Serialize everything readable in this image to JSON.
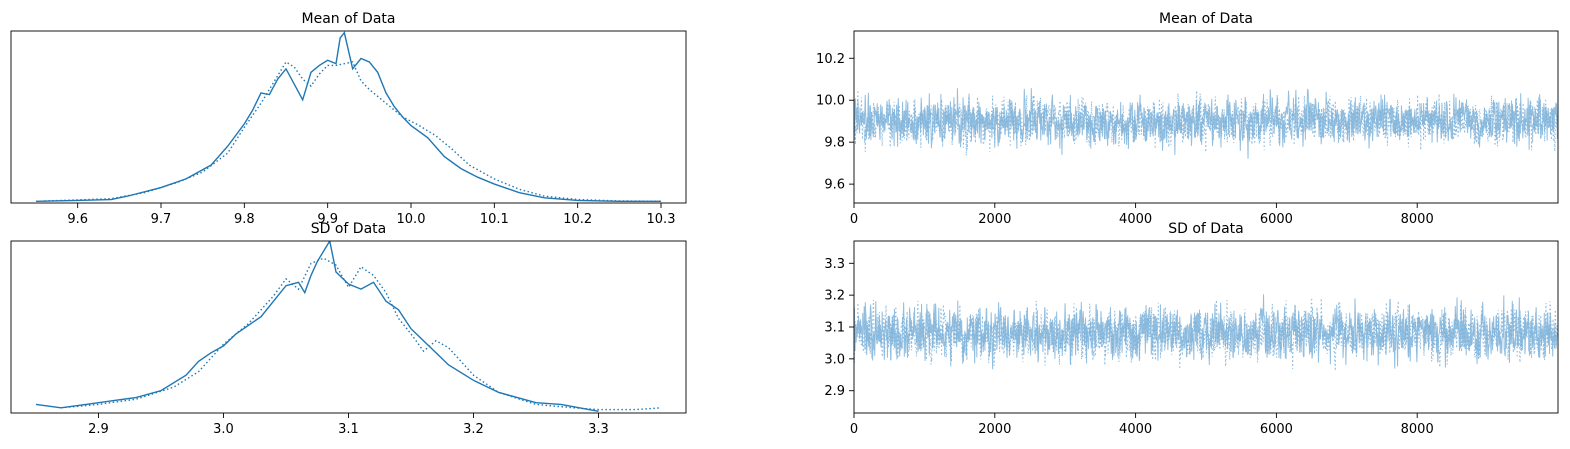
{
  "figure": {
    "colors": {
      "line": "#1f77b4",
      "trace": "#7fb3d9",
      "frame": "#000000"
    }
  },
  "chart_data": [
    {
      "type": "line",
      "subtype": "density",
      "title": "Mean of Data",
      "xlabel": "",
      "ylabel": "",
      "xlim": [
        9.52,
        10.33
      ],
      "ylim": [
        0,
        1
      ],
      "y_ticks_visible": false,
      "grid": false,
      "x_ticks": [
        "9.6",
        "9.7",
        "9.8",
        "9.9",
        "10.0",
        "10.1",
        "10.2",
        "10.3"
      ],
      "series": [
        {
          "style": "solid",
          "x": [
            9.55,
            9.6,
            9.64,
            9.66,
            9.7,
            9.73,
            9.76,
            9.78,
            9.8,
            9.81,
            9.82,
            9.83,
            9.84,
            9.85,
            9.86,
            9.87,
            9.88,
            9.89,
            9.9,
            9.91,
            9.915,
            9.92,
            9.93,
            9.94,
            9.95,
            9.96,
            9.97,
            9.98,
            9.99,
            10.0,
            10.02,
            10.04,
            10.06,
            10.08,
            10.1,
            10.13,
            10.16,
            10.2,
            10.25,
            10.3
          ],
          "y": [
            0.01,
            0.015,
            0.02,
            0.04,
            0.09,
            0.14,
            0.22,
            0.33,
            0.46,
            0.54,
            0.64,
            0.63,
            0.72,
            0.78,
            0.69,
            0.6,
            0.76,
            0.8,
            0.83,
            0.81,
            0.96,
            0.99,
            0.78,
            0.84,
            0.82,
            0.76,
            0.64,
            0.56,
            0.5,
            0.45,
            0.38,
            0.27,
            0.2,
            0.15,
            0.11,
            0.06,
            0.03,
            0.015,
            0.01,
            0.01
          ]
        },
        {
          "style": "dotted",
          "x": [
            9.56,
            9.6,
            9.64,
            9.68,
            9.72,
            9.75,
            9.78,
            9.8,
            9.82,
            9.84,
            9.85,
            9.86,
            9.87,
            9.88,
            9.89,
            9.9,
            9.91,
            9.93,
            9.94,
            9.95,
            9.97,
            9.99,
            10.01,
            10.03,
            10.05,
            10.07,
            10.1,
            10.13,
            10.16,
            10.2,
            10.25,
            10.3
          ],
          "y": [
            0.012,
            0.018,
            0.025,
            0.06,
            0.12,
            0.18,
            0.29,
            0.44,
            0.58,
            0.74,
            0.82,
            0.79,
            0.72,
            0.68,
            0.75,
            0.8,
            0.8,
            0.82,
            0.71,
            0.66,
            0.58,
            0.5,
            0.45,
            0.39,
            0.31,
            0.22,
            0.14,
            0.08,
            0.04,
            0.02,
            0.012,
            0.01
          ]
        }
      ]
    },
    {
      "type": "line",
      "subtype": "trace",
      "title": "Mean of Data",
      "xlabel": "",
      "ylabel": "",
      "xlim": [
        0,
        10000
      ],
      "ylim": [
        9.51,
        10.33
      ],
      "x_ticks": [
        "0",
        "2000",
        "4000",
        "6000",
        "8000"
      ],
      "y_ticks": [
        "9.6",
        "9.8",
        "10.0",
        "10.2"
      ],
      "grid": false,
      "series": [
        {
          "style": "solid",
          "samples": 10000,
          "center": 9.9,
          "spread": 0.1
        },
        {
          "style": "dotted",
          "samples": 10000,
          "center": 9.9,
          "spread": 0.1
        }
      ]
    },
    {
      "type": "line",
      "subtype": "density",
      "title": "SD of Data",
      "xlabel": "",
      "ylabel": "",
      "xlim": [
        2.83,
        3.37
      ],
      "ylim": [
        0,
        1
      ],
      "y_ticks_visible": false,
      "grid": false,
      "x_ticks": [
        "2.9",
        "3.0",
        "3.1",
        "3.2",
        "3.3"
      ],
      "series": [
        {
          "style": "solid",
          "x": [
            2.85,
            2.87,
            2.89,
            2.91,
            2.93,
            2.95,
            2.97,
            2.98,
            2.99,
            3.0,
            3.01,
            3.02,
            3.03,
            3.04,
            3.05,
            3.06,
            3.065,
            3.07,
            3.075,
            3.085,
            3.09,
            3.1,
            3.11,
            3.12,
            3.13,
            3.14,
            3.15,
            3.16,
            3.17,
            3.18,
            3.2,
            3.22,
            3.25,
            3.27,
            3.3
          ],
          "y": [
            0.05,
            0.03,
            0.05,
            0.07,
            0.09,
            0.13,
            0.22,
            0.3,
            0.35,
            0.39,
            0.46,
            0.51,
            0.56,
            0.65,
            0.74,
            0.76,
            0.7,
            0.8,
            0.88,
            1.0,
            0.82,
            0.75,
            0.72,
            0.76,
            0.65,
            0.6,
            0.49,
            0.42,
            0.35,
            0.28,
            0.19,
            0.12,
            0.06,
            0.05,
            0.01
          ]
        },
        {
          "style": "dotted",
          "x": [
            2.87,
            2.9,
            2.93,
            2.96,
            2.98,
            3.0,
            3.02,
            3.04,
            3.05,
            3.06,
            3.07,
            3.08,
            3.09,
            3.1,
            3.11,
            3.12,
            3.13,
            3.14,
            3.15,
            3.16,
            3.17,
            3.18,
            3.2,
            3.22,
            3.25,
            3.28,
            3.3,
            3.33,
            3.35
          ],
          "y": [
            0.03,
            0.05,
            0.08,
            0.15,
            0.24,
            0.4,
            0.52,
            0.68,
            0.78,
            0.72,
            0.87,
            0.9,
            0.86,
            0.73,
            0.85,
            0.8,
            0.7,
            0.55,
            0.46,
            0.36,
            0.42,
            0.38,
            0.22,
            0.12,
            0.05,
            0.03,
            0.02,
            0.02,
            0.03
          ]
        }
      ]
    },
    {
      "type": "line",
      "subtype": "trace",
      "title": "SD of Data",
      "xlabel": "",
      "ylabel": "",
      "xlim": [
        0,
        10000
      ],
      "ylim": [
        2.83,
        3.37
      ],
      "x_ticks": [
        "0",
        "2000",
        "4000",
        "6000",
        "8000"
      ],
      "y_ticks": [
        "2.9",
        "3.0",
        "3.1",
        "3.2",
        "3.3"
      ],
      "grid": false,
      "series": [
        {
          "style": "solid",
          "samples": 10000,
          "center": 3.08,
          "spread": 0.075
        },
        {
          "style": "dotted",
          "samples": 10000,
          "center": 3.08,
          "spread": 0.075
        }
      ]
    }
  ]
}
